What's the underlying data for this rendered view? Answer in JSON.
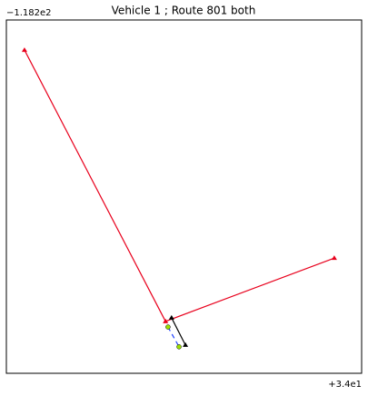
{
  "chart_data": {
    "type": "line",
    "title": "Vehicle 1 ; Route 801 both",
    "y_offset_label": "−1.182e2",
    "x_offset_label": "+3.4e1",
    "xlim": [
      0,
      1
    ],
    "ylim": [
      0,
      1
    ],
    "series": [
      {
        "color": "#e8001c",
        "dash": false,
        "marker": "triangle",
        "x": [
          0.051,
          0.448,
          0.923
        ],
        "values": [
          0.915,
          0.147,
          0.326
        ]
      },
      {
        "color": "#000000",
        "dash": false,
        "marker": "triangle",
        "x": [
          0.465,
          0.504
        ],
        "values": [
          0.157,
          0.08
        ]
      },
      {
        "color": "#1f3fff",
        "dash": true,
        "marker": "star",
        "x": [
          0.455,
          0.486
        ],
        "values": [
          0.131,
          0.075
        ]
      }
    ]
  }
}
